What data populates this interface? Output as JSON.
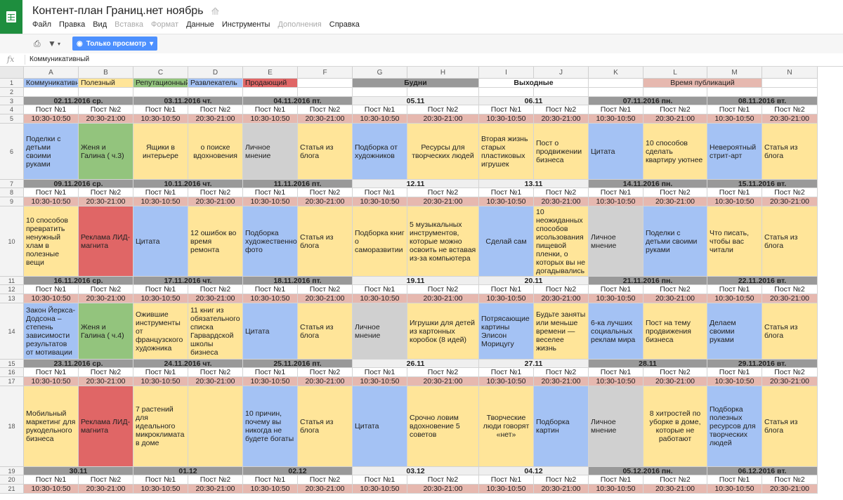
{
  "app": {
    "title": "Контент-план Границ.нет ноябрь",
    "menu": [
      "Файл",
      "Правка",
      "Вид",
      "Вставка",
      "Формат",
      "Данные",
      "Инструменты",
      "Дополнения",
      "Справка"
    ],
    "menu_dim": [
      false,
      false,
      false,
      true,
      true,
      false,
      false,
      true,
      false
    ],
    "view_only_label": "Только просмотр",
    "formula_label": "fx",
    "formula_value": "Коммуникативный"
  },
  "colors": {
    "blue": "#a4c2f4",
    "green": "#93c47d",
    "yellow": "#ffe599",
    "red": "#e06666",
    "gray": "#d0d0d0",
    "pink": "#e6b8af",
    "darkgray": "#999999",
    "light": "#efefef",
    "header_blue": "#4d90fe"
  },
  "columns": [
    "A",
    "B",
    "C",
    "D",
    "E",
    "F",
    "G",
    "H",
    "I",
    "J",
    "K",
    "L",
    "M",
    "N"
  ],
  "rows": [
    {
      "n": "1",
      "cells": [
        {
          "t": "Коммуникативный",
          "bg": "blue",
          "span": 1,
          "cls": ""
        },
        {
          "t": "Полезный",
          "bg": "yellow",
          "span": 1,
          "cls": ""
        },
        {
          "t": "Репутационный",
          "bg": "green",
          "span": 1,
          "cls": ""
        },
        {
          "t": "Развлекатель",
          "bg": "blue",
          "span": 1,
          "cls": ""
        },
        {
          "t": "Продающий",
          "bg": "red",
          "span": 1,
          "cls": ""
        },
        {
          "t": "",
          "bg": "white",
          "span": 1,
          "cls": ""
        },
        {
          "t": "Будни",
          "bg": "darkgray",
          "span": 2,
          "cls": "c b"
        },
        {
          "t": "Выходные",
          "bg": "white",
          "span": 2,
          "cls": "c b"
        },
        {
          "t": "",
          "bg": "white",
          "span": 1,
          "cls": ""
        },
        {
          "t": "Время публикаций",
          "bg": "pink",
          "span": 2,
          "cls": "c"
        },
        {
          "t": "",
          "bg": "white",
          "span": 1,
          "cls": ""
        }
      ]
    },
    {
      "n": "2",
      "cells": []
    },
    {
      "n": "3",
      "cells": [
        {
          "t": "02.11.2016 ср.",
          "bg": "darkgray",
          "span": 2,
          "cls": "c b"
        },
        {
          "t": "03.11.2016 чт.",
          "bg": "darkgray",
          "span": 2,
          "cls": "c b"
        },
        {
          "t": "04.11.2016 пт.",
          "bg": "darkgray",
          "span": 2,
          "cls": "c b"
        },
        {
          "t": "05.11",
          "bg": "light",
          "span": 2,
          "cls": "c b"
        },
        {
          "t": "06.11",
          "bg": "light",
          "span": 2,
          "cls": "c b"
        },
        {
          "t": "07.11.2016 пн.",
          "bg": "darkgray",
          "span": 2,
          "cls": "c b"
        },
        {
          "t": "08.11.2016 вт.",
          "bg": "darkgray",
          "span": 2,
          "cls": "c b"
        }
      ]
    },
    {
      "n": "4",
      "kind": "post"
    },
    {
      "n": "5",
      "kind": "time"
    },
    {
      "n": "6",
      "cells": [
        {
          "t": "Поделки с детьми своими руками",
          "bg": "blue",
          "cls": "wrap"
        },
        {
          "t": "Женя и Галина ( ч.3)",
          "bg": "green",
          "cls": "wrap"
        },
        {
          "t": "Ящики в интерьере",
          "bg": "yellow",
          "cls": "wrap c"
        },
        {
          "t": "о поиске вдохновения",
          "bg": "yellow",
          "cls": "wrap c"
        },
        {
          "t": "Личное мнение",
          "bg": "gray",
          "cls": "wrap"
        },
        {
          "t": "Статья из блога",
          "bg": "yellow",
          "cls": "wrap"
        },
        {
          "t": "Подборка от художников",
          "bg": "blue",
          "cls": "wrap"
        },
        {
          "t": "Ресурсы для творческих людей",
          "bg": "yellow",
          "cls": "wrap c"
        },
        {
          "t": "Вторая жизнь старых пластиковых игрушек",
          "bg": "yellow",
          "cls": "wrap"
        },
        {
          "t": "Пост о продвижении бизнеса",
          "bg": "yellow",
          "cls": "wrap"
        },
        {
          "t": "Цитата",
          "bg": "blue",
          "cls": "wrap"
        },
        {
          "t": "10 способов сделать квартиру уютнее",
          "bg": "yellow",
          "cls": "wrap"
        },
        {
          "t": "Невероятный стрит-арт",
          "bg": "blue",
          "cls": "wrap"
        },
        {
          "t": "Статья из блога",
          "bg": "yellow",
          "cls": "wrap"
        }
      ]
    },
    {
      "n": "7",
      "cells": [
        {
          "t": "09.11.2016 ср.",
          "bg": "darkgray",
          "span": 2,
          "cls": "c b"
        },
        {
          "t": "10.11.2016 чт.",
          "bg": "darkgray",
          "span": 2,
          "cls": "c b"
        },
        {
          "t": "11.11.2016 пт.",
          "bg": "darkgray",
          "span": 2,
          "cls": "c b"
        },
        {
          "t": "12.11",
          "bg": "light",
          "span": 2,
          "cls": "c b"
        },
        {
          "t": "13.11",
          "bg": "light",
          "span": 2,
          "cls": "c b"
        },
        {
          "t": "14.11.2016 пн.",
          "bg": "darkgray",
          "span": 2,
          "cls": "c b"
        },
        {
          "t": "15.11.2016 вт.",
          "bg": "darkgray",
          "span": 2,
          "cls": "c b"
        }
      ]
    },
    {
      "n": "8",
      "kind": "post"
    },
    {
      "n": "9",
      "kind": "time"
    },
    {
      "n": "10",
      "cells": [
        {
          "t": "10 способов превратить ненужный хлам в полезные вещи",
          "bg": "yellow",
          "cls": "wrap"
        },
        {
          "t": "Реклама ЛИД-магнита",
          "bg": "red",
          "cls": "wrap"
        },
        {
          "t": "Цитата",
          "bg": "blue",
          "cls": "wrap"
        },
        {
          "t": "12 ошибок во время ремонта",
          "bg": "yellow",
          "cls": "wrap"
        },
        {
          "t": "Подборка художественного фото",
          "bg": "blue",
          "cls": "wrap"
        },
        {
          "t": "Статья из блога",
          "bg": "yellow",
          "cls": "wrap"
        },
        {
          "t": "Подборка книг о саморазвитии",
          "bg": "yellow",
          "cls": "wrap"
        },
        {
          "t": "5 музыкальных инструментов, которые можно освоить не вставая из-за компьютера",
          "bg": "yellow",
          "cls": "wrap"
        },
        {
          "t": "Сделай сам",
          "bg": "blue",
          "cls": "wrap c"
        },
        {
          "t": "10 неожиданных способов исользования пищевой пленки, о которых вы не догадывались",
          "bg": "yellow",
          "cls": "wrap"
        },
        {
          "t": "Личное мнение",
          "bg": "gray",
          "cls": "wrap"
        },
        {
          "t": "Поделки с детьми своими руками",
          "bg": "blue",
          "cls": "wrap"
        },
        {
          "t": "Что писать, чтобы вас читали",
          "bg": "yellow",
          "cls": "wrap"
        },
        {
          "t": "Статья из блога",
          "bg": "yellow",
          "cls": "wrap"
        }
      ]
    },
    {
      "n": "11",
      "cells": [
        {
          "t": "16.11.2016 ср.",
          "bg": "darkgray",
          "span": 2,
          "cls": "c b"
        },
        {
          "t": "17.11.2016 чт.",
          "bg": "darkgray",
          "span": 2,
          "cls": "c b"
        },
        {
          "t": "18.11.2016 пт.",
          "bg": "darkgray",
          "span": 2,
          "cls": "c b"
        },
        {
          "t": "19.11",
          "bg": "light",
          "span": 2,
          "cls": "c b"
        },
        {
          "t": "20.11",
          "bg": "light",
          "span": 2,
          "cls": "c b"
        },
        {
          "t": "21.11.2016 пн.",
          "bg": "darkgray",
          "span": 2,
          "cls": "c b"
        },
        {
          "t": "22.11.2016 вт.",
          "bg": "darkgray",
          "span": 2,
          "cls": "c b"
        }
      ]
    },
    {
      "n": "12",
      "kind": "post"
    },
    {
      "n": "13",
      "kind": "time"
    },
    {
      "n": "14",
      "cells": [
        {
          "t": "Закон Йеркса-Додсона – степень зависимости результатов от мотивации",
          "bg": "blue",
          "cls": "wrap"
        },
        {
          "t": "Женя и Галина ( ч.4)",
          "bg": "green",
          "cls": "wrap"
        },
        {
          "t": "Ожившие инструменты от французского художника",
          "bg": "yellow",
          "cls": "wrap"
        },
        {
          "t": "11 книг из обязательного списка Гарвардской школы бизнеса",
          "bg": "yellow",
          "cls": "wrap"
        },
        {
          "t": "Цитата",
          "bg": "blue",
          "cls": "wrap"
        },
        {
          "t": "Статья из блога",
          "bg": "yellow",
          "cls": "wrap"
        },
        {
          "t": "Личное мнение",
          "bg": "gray",
          "cls": "wrap"
        },
        {
          "t": "Игрушки для детей из картонных коробок (8 идей)",
          "bg": "yellow",
          "cls": "wrap"
        },
        {
          "t": "Потрясающие картины Элисон Морицугу",
          "bg": "blue",
          "cls": "wrap"
        },
        {
          "t": "Будьте заняты или меньше времени — веселее жизнь",
          "bg": "yellow",
          "cls": "wrap"
        },
        {
          "t": "6-ка лучших социальных реклам мира",
          "bg": "blue",
          "cls": "wrap"
        },
        {
          "t": "Пост на тему продвижения бизнеса",
          "bg": "yellow",
          "cls": "wrap"
        },
        {
          "t": "Делаем своими руками",
          "bg": "blue",
          "cls": "wrap"
        },
        {
          "t": "Статья из блога",
          "bg": "yellow",
          "cls": "wrap"
        }
      ]
    },
    {
      "n": "15",
      "cells": [
        {
          "t": "23.11.2016 ср.",
          "bg": "darkgray",
          "span": 2,
          "cls": "c b"
        },
        {
          "t": "24.11.2016 чт.",
          "bg": "darkgray",
          "span": 2,
          "cls": "c b"
        },
        {
          "t": "25.11.2016 пт.",
          "bg": "darkgray",
          "span": 2,
          "cls": "c b"
        },
        {
          "t": "26.11",
          "bg": "light",
          "span": 2,
          "cls": "c b"
        },
        {
          "t": "27.11",
          "bg": "light",
          "span": 2,
          "cls": "c b"
        },
        {
          "t": "28.11",
          "bg": "darkgray",
          "span": 2,
          "cls": "c b"
        },
        {
          "t": "29.11.2016 вт.",
          "bg": "darkgray",
          "span": 2,
          "cls": "c b"
        }
      ]
    },
    {
      "n": "16",
      "kind": "post"
    },
    {
      "n": "17",
      "kind": "time"
    },
    {
      "n": "18",
      "cells": [
        {
          "t": "Мобильный маркетинг для рукодельного бизнеса",
          "bg": "yellow",
          "cls": "wrap"
        },
        {
          "t": "Реклама ЛИД-магнита",
          "bg": "red",
          "cls": "wrap"
        },
        {
          "t": " 7 растений для идеального микроклимата в доме",
          "bg": "yellow",
          "cls": "wrap"
        },
        {
          "t": "",
          "bg": "yellow",
          "cls": "wrap"
        },
        {
          "t": "10 причин, почему вы никогда не будете богаты",
          "bg": "blue",
          "cls": "wrap"
        },
        {
          "t": "Статья из блога",
          "bg": "yellow",
          "cls": "wrap"
        },
        {
          "t": "Цитата",
          "bg": "blue",
          "cls": "wrap"
        },
        {
          "t": "Срочно ловим вдохновение 5 советов",
          "bg": "yellow",
          "cls": "wrap"
        },
        {
          "t": "Творческие люди говорят «нет»",
          "bg": "yellow",
          "cls": "wrap c"
        },
        {
          "t": "Подборка картин",
          "bg": "blue",
          "cls": "wrap"
        },
        {
          "t": "Личное мнение",
          "bg": "gray",
          "cls": "wrap"
        },
        {
          "t": "8 хитростей по уборке в доме, которые не работают",
          "bg": "yellow",
          "cls": "wrap c"
        },
        {
          "t": "Подборка полезных ресурсов для творческих людей",
          "bg": "blue",
          "cls": "wrap"
        },
        {
          "t": "Статья из блога",
          "bg": "yellow",
          "cls": "wrap"
        }
      ]
    },
    {
      "n": "19",
      "cells": [
        {
          "t": "30.11",
          "bg": "darkgray",
          "span": 2,
          "cls": "c b"
        },
        {
          "t": "01.12",
          "bg": "darkgray",
          "span": 2,
          "cls": "c b"
        },
        {
          "t": "02.12",
          "bg": "darkgray",
          "span": 2,
          "cls": "c b"
        },
        {
          "t": "03.12",
          "bg": "light",
          "span": 2,
          "cls": "c b"
        },
        {
          "t": "04.12",
          "bg": "light",
          "span": 2,
          "cls": "c b"
        },
        {
          "t": "05.12.2016 пн.",
          "bg": "darkgray",
          "span": 2,
          "cls": "c b"
        },
        {
          "t": "06.12.2016 вт.",
          "bg": "darkgray",
          "span": 2,
          "cls": "c b"
        }
      ]
    },
    {
      "n": "20",
      "kind": "post"
    },
    {
      "n": "21",
      "kind": "time"
    }
  ],
  "post_labels": [
    "Пост №1",
    "Пост №2"
  ],
  "time_labels": [
    "10:30-10:50",
    "20:30-21:00"
  ]
}
